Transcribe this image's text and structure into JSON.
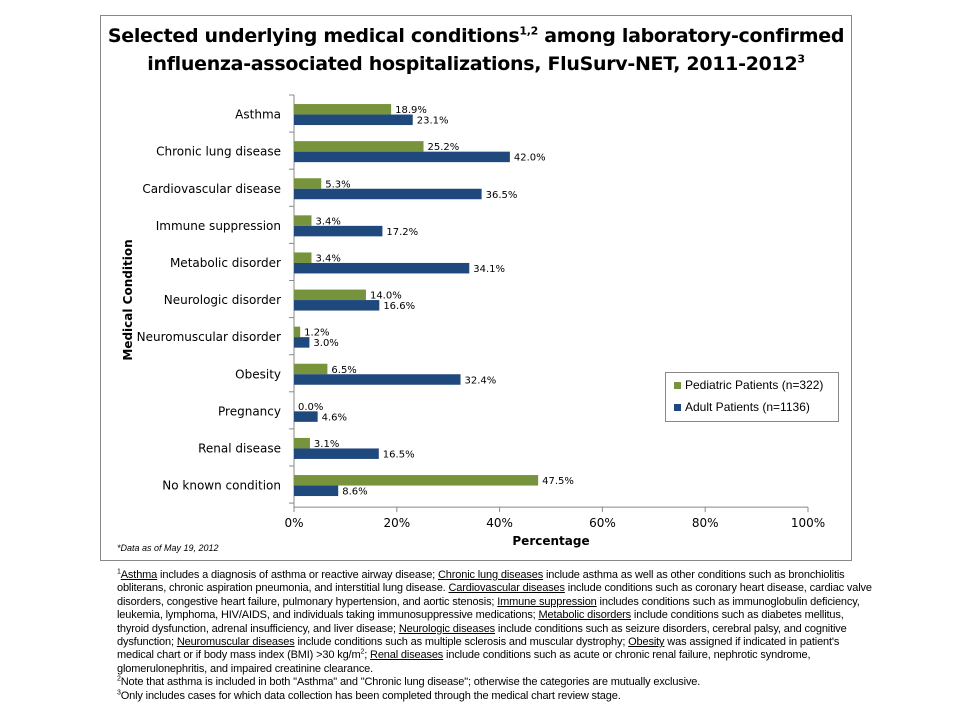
{
  "chart_data": {
    "type": "bar",
    "orientation": "horizontal",
    "title": "Selected underlying medical conditions1,2 among laboratory-confirmed influenza-associated hospitalizations, FluSurv-NET, 2011-20123",
    "title_lines": [
      {
        "text": "Selected underlying medical conditions",
        "sup": "1,2",
        "rest": " among laboratory-confirmed"
      },
      {
        "text": "influenza-associated hospitalizations, FluSurv-NET, 2011-2012",
        "sup": "3",
        "rest": ""
      }
    ],
    "xlabel": "Percentage",
    "ylabel": "Medical Condition",
    "xlim": [
      0,
      100
    ],
    "xticks": [
      "0%",
      "20%",
      "40%",
      "60%",
      "80%",
      "100%"
    ],
    "categories": [
      "Asthma",
      "Chronic lung disease",
      "Cardiovascular disease",
      "Immune suppression",
      "Metabolic disorder",
      "Neurologic disorder",
      "Neuromuscular disorder",
      "Obesity",
      "Pregnancy",
      "Renal disease",
      "No known condition"
    ],
    "series": [
      {
        "name": "Pediatric Patients (n=322)",
        "color": "#77933C",
        "values": [
          18.9,
          25.2,
          5.3,
          3.4,
          3.4,
          14.0,
          1.2,
          6.5,
          0.0,
          3.1,
          47.5
        ]
      },
      {
        "name": "Adult Patients (n=1136)",
        "color": "#1F497D",
        "values": [
          23.1,
          42.0,
          36.5,
          17.2,
          34.1,
          16.6,
          3.0,
          32.4,
          4.6,
          16.5,
          8.6
        ]
      }
    ],
    "legend_position": "right",
    "grid": false,
    "note": "*Data as of May 19, 2012"
  },
  "footnotes": [
    [
      {
        "s": "1"
      },
      {
        "u": "Asthma"
      },
      {
        "t": " includes a diagnosis of asthma or reactive airway disease; "
      },
      {
        "u": "Chronic lung diseases"
      },
      {
        "t": " include asthma as well as other conditions such as bronchiolitis"
      }
    ],
    [
      {
        "t": "obliterans, chronic aspiration pneumonia, and interstitial lung disease. "
      },
      {
        "u": "Cardiovascular diseases"
      },
      {
        "t": " include conditions such as coronary heart disease, cardiac valve"
      }
    ],
    [
      {
        "t": "disorders, congestive heart failure, pulmonary hypertension, and aortic stenosis; "
      },
      {
        "u": "Immune suppression"
      },
      {
        "t": " includes conditions such as immunoglobulin deficiency,"
      }
    ],
    [
      {
        "t": "leukemia, lymphoma, HIV/AIDS,  and individuals taking immunosuppressive medications; "
      },
      {
        "u": "Metabolic disorders"
      },
      {
        "t": " include conditions such as diabetes mellitus,"
      }
    ],
    [
      {
        "t": "thyroid dysfunction, adrenal insufficiency, and liver  disease; "
      },
      {
        "u": "Neurologic diseases"
      },
      {
        "t": " include conditions such as seizure disorders, cerebral palsy, and cognitive"
      }
    ],
    [
      {
        "t": "dysfunction; "
      },
      {
        "u": "Neuromuscular diseases"
      },
      {
        "t": " include conditions such as multiple sclerosis and muscular dystrophy; "
      },
      {
        "u": "Obesity"
      },
      {
        "t": " was assigned if indicated in patient's"
      }
    ],
    [
      {
        "t": "medical chart or if body mass index (BMI)  >30 kg/m"
      },
      {
        "s": "2"
      },
      {
        "t": "; "
      },
      {
        "u": "Renal diseases"
      },
      {
        "t": " include conditions such as acute or chronic renal failure, nephrotic syndrome,"
      }
    ],
    [
      {
        "t": "glomerulonephritis, and impaired creatinine clearance."
      }
    ],
    [
      {
        "s": "2"
      },
      {
        "t": "Note that asthma is included in both \"Asthma\" and \"Chronic lung disease\"; otherwise the categories are mutually exclusive."
      }
    ],
    [
      {
        "s": "3"
      },
      {
        "t": "Only includes cases for which data collection has been completed through the medical chart review stage."
      }
    ]
  ]
}
